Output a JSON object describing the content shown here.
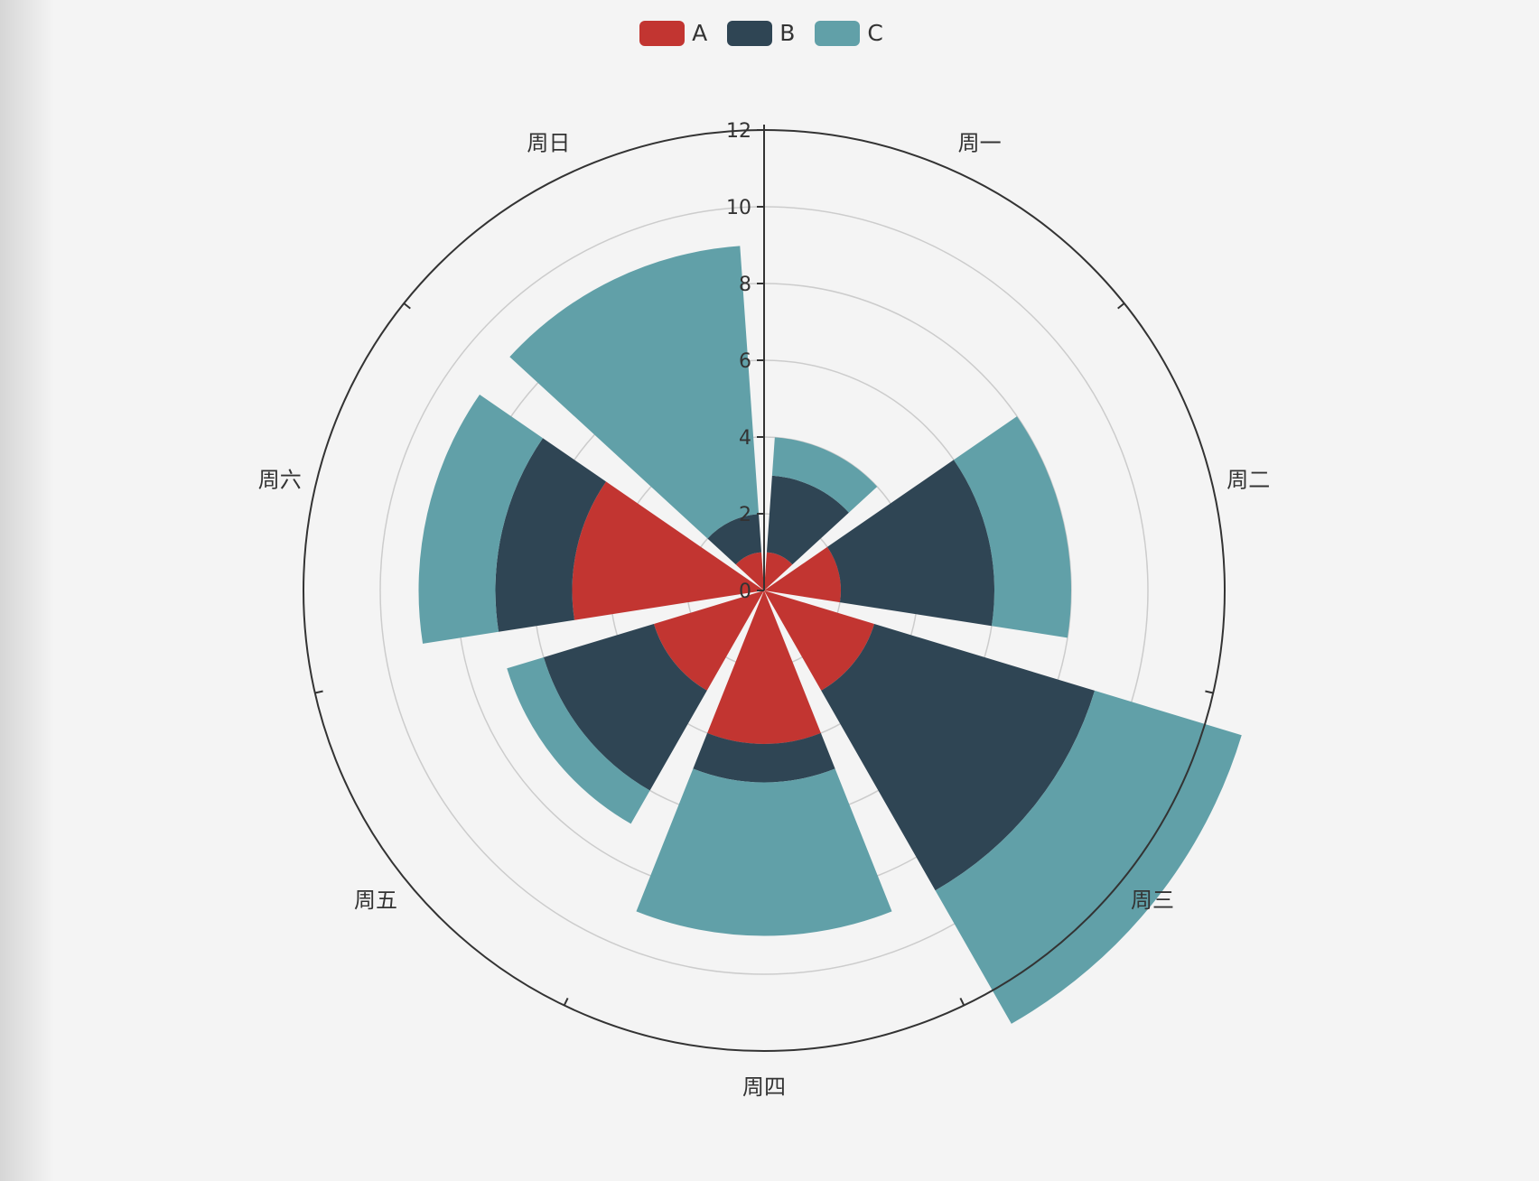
{
  "chart_data": {
    "type": "polar-bar",
    "stacked": true,
    "categories": [
      "周一",
      "周二",
      "周三",
      "周四",
      "周五",
      "周六",
      "周日"
    ],
    "series": [
      {
        "name": "A",
        "color": "#c23531",
        "values": [
          1,
          2,
          3,
          4,
          3,
          5,
          1
        ]
      },
      {
        "name": "B",
        "color": "#2f4554",
        "values": [
          2,
          4,
          6,
          1,
          3,
          2,
          1
        ]
      },
      {
        "name": "C",
        "color": "#61a0a8",
        "values": [
          1,
          2,
          4,
          4,
          1,
          2,
          7
        ]
      }
    ],
    "radius_axis": {
      "min": 0,
      "max": 12,
      "ticks": [
        0,
        2,
        4,
        6,
        8,
        10,
        12
      ]
    },
    "legend_position": "top-center",
    "grid": true
  }
}
